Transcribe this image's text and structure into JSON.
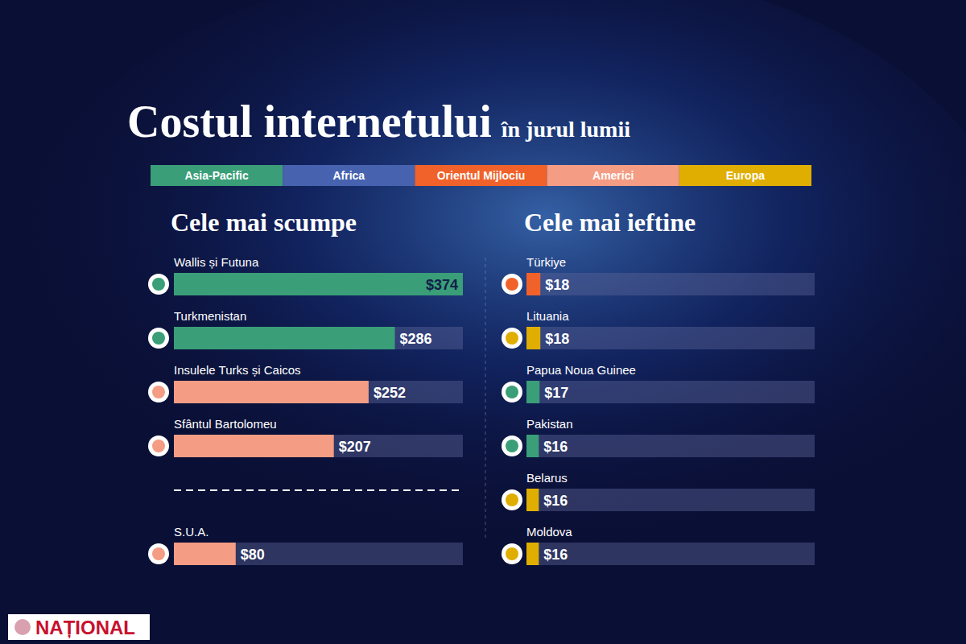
{
  "title": "Costul internetului",
  "subtitle": "în jurul lumii",
  "regions": [
    {
      "name": "Asia-Pacific",
      "color": "#3a9e78"
    },
    {
      "name": "Africa",
      "color": "#4763b0"
    },
    {
      "name": "Orientul Mijlociu",
      "color": "#f0622a"
    },
    {
      "name": "Americi",
      "color": "#f59c84"
    },
    {
      "name": "Europa",
      "color": "#e0ae00"
    }
  ],
  "watermark": "NAȚIONAL",
  "chart_data": [
    {
      "type": "bar",
      "orientation": "horizontal",
      "title": "Cele mai scumpe",
      "categories": [
        "Wallis și Futuna",
        "Turkmenistan",
        "Insulele Turks și Caicos",
        "Sfântul Bartolomeu",
        "S.U.A."
      ],
      "values": [
        374,
        286,
        252,
        207,
        80
      ],
      "value_labels": [
        "$374",
        "$286",
        "$252",
        "$207",
        "$80"
      ],
      "colors": [
        "#3a9e78",
        "#3a9e78",
        "#f59c84",
        "#f59c84",
        "#f59c84"
      ],
      "xlim": [
        0,
        374
      ],
      "data_labels": true
    },
    {
      "type": "bar",
      "orientation": "horizontal",
      "title": "Cele mai ieftine",
      "categories": [
        "Türkiye",
        "Lituania",
        "Papua Noua Guinee",
        "Pakistan",
        "Belarus",
        "Moldova"
      ],
      "values": [
        18,
        18,
        17,
        16,
        16,
        16
      ],
      "value_labels": [
        "$18",
        "$18",
        "$17",
        "$16",
        "$16",
        "$16"
      ],
      "colors": [
        "#f0622a",
        "#e0ae00",
        "#3a9e78",
        "#3a9e78",
        "#e0ae00",
        "#e0ae00"
      ],
      "xlim": [
        0,
        374
      ],
      "data_labels": true
    }
  ]
}
